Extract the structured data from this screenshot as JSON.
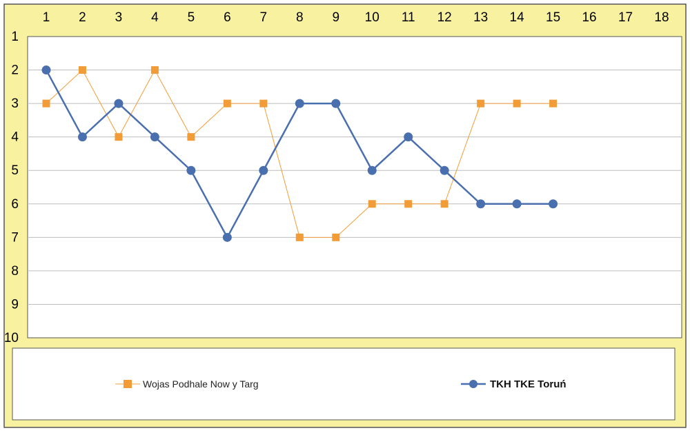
{
  "chart_data": {
    "type": "line",
    "x_ticks": [
      "1",
      "2",
      "3",
      "4",
      "5",
      "6",
      "7",
      "8",
      "9",
      "10",
      "11",
      "12",
      "13",
      "14",
      "15",
      "16",
      "17",
      "18"
    ],
    "y_ticks": [
      "1",
      "2",
      "3",
      "4",
      "5",
      "6",
      "7",
      "8",
      "9",
      "10"
    ],
    "x_range": [
      1,
      18
    ],
    "y_range": [
      1,
      10
    ],
    "y_inverted": true,
    "x_axis_position": "top",
    "grid": true,
    "legend_position": "bottom",
    "series": [
      {
        "name": "Wojas Podhale Now y Targ",
        "marker": "square",
        "color": "#F29C38",
        "x": [
          1,
          2,
          3,
          4,
          5,
          6,
          7,
          8,
          9,
          10,
          11,
          12,
          13,
          14,
          15
        ],
        "values": [
          3,
          2,
          4,
          2,
          4,
          3,
          3,
          7,
          7,
          6,
          6,
          6,
          3,
          3,
          3
        ]
      },
      {
        "name": "TKH TKE Toruń",
        "marker": "circle",
        "color": "#4A6FAE",
        "x": [
          1,
          2,
          3,
          4,
          5,
          6,
          7,
          8,
          9,
          10,
          11,
          12,
          13,
          14,
          15
        ],
        "values": [
          2,
          4,
          3,
          4,
          5,
          7,
          5,
          3,
          3,
          5,
          4,
          5,
          6,
          6,
          6
        ]
      }
    ]
  },
  "colors": {
    "frame_background": "#F8F2A0",
    "plot_background": "#FFFFFF",
    "gridline": "#BDBDBD",
    "frame_border": "#555555"
  }
}
